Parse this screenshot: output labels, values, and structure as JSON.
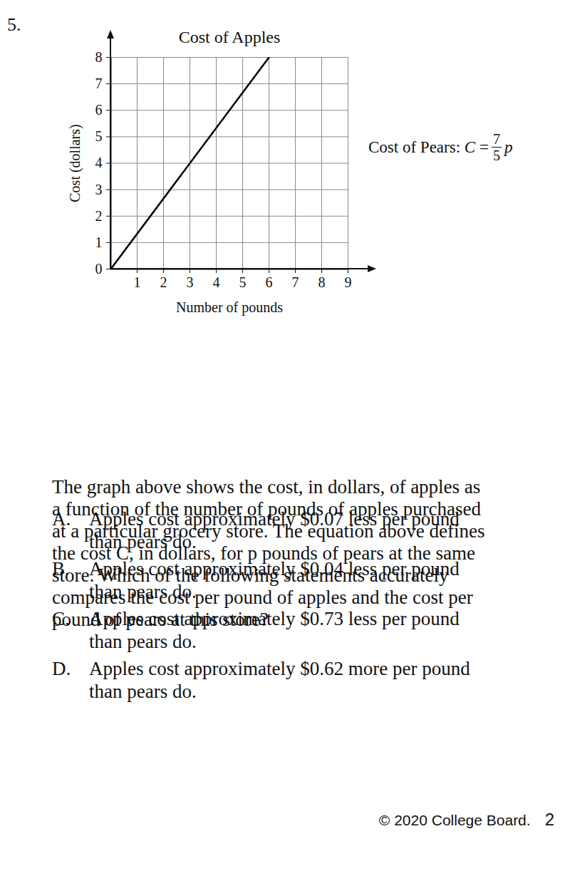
{
  "chart_data": {
    "type": "line",
    "title": "Cost of Apples",
    "x_label": "Number of pounds",
    "y_label": "Cost (dollars)",
    "x": [
      0,
      6
    ],
    "values": [
      0,
      8
    ],
    "color": "#000000",
    "xlim": [
      0,
      9
    ],
    "ylim": [
      0,
      8
    ],
    "xticks": [
      1,
      2,
      3,
      4,
      5,
      6,
      7,
      8,
      9
    ],
    "yticks": [
      0,
      1,
      2,
      3,
      4,
      5,
      6,
      7,
      8
    ],
    "grid": true
  },
  "question_number": "5.",
  "pears_equation": {
    "label": "Cost of Pears:",
    "lhs": "C",
    "relation": "=",
    "numerator": 7,
    "denominator": 5,
    "variable": "p"
  },
  "question": {
    "lines": [
      "The graph above shows the cost, in dollars, of apples as",
      "a function of the number of pounds of apples purchased",
      "at a particular grocery store. The equation above defines",
      "the cost C, in dollars, for p pounds of pears at the same",
      "store. Which of the following statements accurately",
      "compares the cost per pound of apples and the cost per",
      "pound of pears at this store?"
    ]
  },
  "options": [
    {
      "letter": "A.",
      "lines": [
        "Apples cost approximately $0.07 less per pound",
        "than pears do."
      ]
    },
    {
      "letter": "B.",
      "lines": [
        "Apples cost approximately $0.04 less per pound",
        "than pears do."
      ]
    },
    {
      "letter": "C.",
      "lines": [
        "Apples cost approximately $0.73 less per pound",
        "than pears do."
      ]
    },
    {
      "letter": "D.",
      "lines": [
        "Apples cost approximately $0.62 more per pound",
        "than pears do."
      ]
    }
  ],
  "footer": {
    "copyright": "© 2020 College Board.",
    "page": "2"
  }
}
